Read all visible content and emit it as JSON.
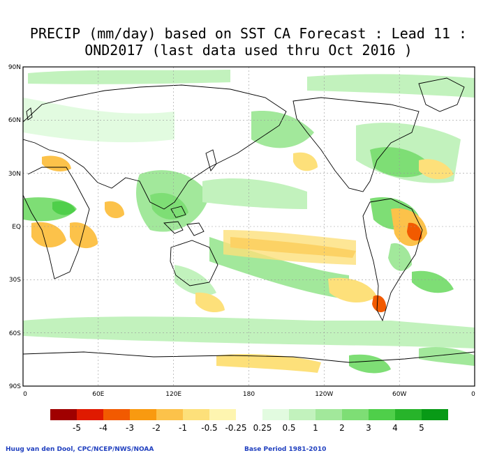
{
  "title": {
    "line1": "PRECIP (mm/day) based on SST CA Forecast : Lead 11 :",
    "line2": "OND2017 (last data used thru Oct 2016 )"
  },
  "axes": {
    "lat_labels": [
      "90N",
      "60N",
      "30N",
      "EQ",
      "30S",
      "60S",
      "90S"
    ],
    "lon_labels": [
      "0",
      "60E",
      "120E",
      "180",
      "120W",
      "60W",
      "0"
    ]
  },
  "legend": {
    "labels": [
      "-5",
      "-4",
      "-3",
      "-2",
      "-1",
      "-0.5",
      "-0.25",
      "0.25",
      "0.5",
      "1",
      "2",
      "3",
      "4",
      "5"
    ],
    "colors": [
      "#a00000",
      "#e01a00",
      "#f25a00",
      "#f99a10",
      "#fcc24a",
      "#fde07a",
      "#fef5b0",
      "#ffffff",
      "#e2fbe0",
      "#c2f2bd",
      "#a2e89b",
      "#7ede75",
      "#4fcf4a",
      "#27b42a",
      "#089a16"
    ]
  },
  "credits": {
    "left": "Huug van den Dool, CPC/NCEP/NWS/NOAA",
    "right": "Base Period 1981-2010"
  }
}
